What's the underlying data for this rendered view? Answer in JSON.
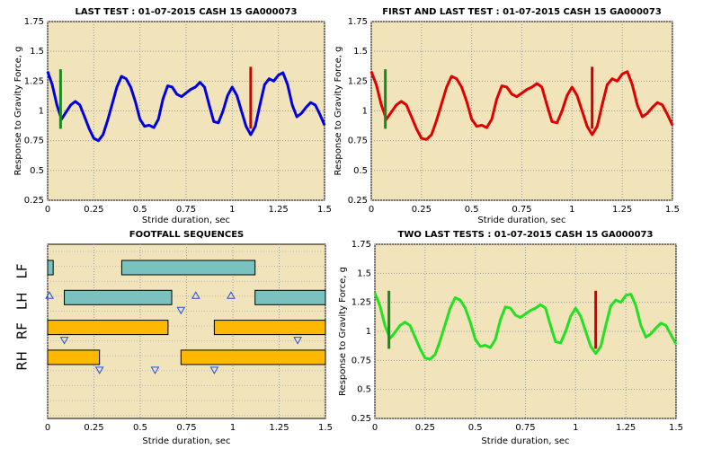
{
  "chart_data": [
    {
      "type": "line",
      "title": "LAST TEST : 01-07-2015 CASH 15 GA000073",
      "x_label": "Stride duration, sec",
      "y_label": "Response to Gravity Force, g",
      "x": [
        0,
        0.025,
        0.05,
        0.075,
        0.1,
        0.125,
        0.15,
        0.175,
        0.2,
        0.225,
        0.25,
        0.275,
        0.3,
        0.325,
        0.35,
        0.375,
        0.4,
        0.425,
        0.45,
        0.475,
        0.5,
        0.525,
        0.55,
        0.575,
        0.6,
        0.625,
        0.65,
        0.675,
        0.7,
        0.725,
        0.75,
        0.775,
        0.8,
        0.825,
        0.85,
        0.875,
        0.9,
        0.925,
        0.95,
        0.975,
        1,
        1.025,
        1.05,
        1.075,
        1.1,
        1.125,
        1.15,
        1.175,
        1.2,
        1.225,
        1.25,
        1.275,
        1.3,
        1.325,
        1.35,
        1.375,
        1.4,
        1.425,
        1.45,
        1.475,
        1.5
      ],
      "series": [
        {
          "color": "#0000e0",
          "values": [
            1.33,
            1.22,
            1.05,
            0.93,
            0.99,
            1.05,
            1.08,
            1.05,
            0.95,
            0.85,
            0.77,
            0.75,
            0.8,
            0.92,
            1.06,
            1.2,
            1.29,
            1.27,
            1.2,
            1.08,
            0.93,
            0.87,
            0.88,
            0.86,
            0.93,
            1.1,
            1.21,
            1.2,
            1.14,
            1.12,
            1.15,
            1.18,
            1.2,
            1.24,
            1.2,
            1.05,
            0.91,
            0.9,
            1,
            1.13,
            1.2,
            1.13,
            1,
            0.87,
            0.8,
            0.87,
            1.05,
            1.22,
            1.27,
            1.25,
            1.3,
            1.32,
            1.22,
            1.05,
            0.95,
            0.98,
            1.03,
            1.07,
            1.05,
            0.97,
            0.88
          ]
        }
      ],
      "markers": [
        {
          "x": 0.07,
          "y": [
            0.85,
            1.35
          ],
          "color": "#1a8a1a"
        },
        {
          "x": 1.1,
          "y": [
            0.85,
            1.37
          ],
          "color": "#d00000"
        }
      ],
      "xlim": [
        0,
        1.5
      ],
      "xticks": [
        0,
        0.25,
        0.5,
        0.75,
        1,
        1.25,
        1.5
      ],
      "ylim": [
        0.25,
        1.75
      ],
      "yticks": [
        0.25,
        0.5,
        0.75,
        1,
        1.25,
        1.5,
        1.75
      ],
      "grid": true
    },
    {
      "type": "line",
      "title": "FIRST AND LAST TEST : 01-07-2015 CASH 15 GA000073",
      "x_label": "Stride duration, sec",
      "y_label": "Response to Gravity Force, g",
      "x": [
        0,
        0.025,
        0.05,
        0.075,
        0.1,
        0.125,
        0.15,
        0.175,
        0.2,
        0.225,
        0.25,
        0.275,
        0.3,
        0.325,
        0.35,
        0.375,
        0.4,
        0.425,
        0.45,
        0.475,
        0.5,
        0.525,
        0.55,
        0.575,
        0.6,
        0.625,
        0.65,
        0.675,
        0.7,
        0.725,
        0.75,
        0.775,
        0.8,
        0.825,
        0.85,
        0.875,
        0.9,
        0.925,
        0.95,
        0.975,
        1,
        1.025,
        1.05,
        1.075,
        1.1,
        1.125,
        1.15,
        1.175,
        1.2,
        1.225,
        1.25,
        1.275,
        1.3,
        1.325,
        1.35,
        1.375,
        1.4,
        1.425,
        1.45,
        1.475,
        1.5
      ],
      "series": [
        {
          "color": "#e00000",
          "values": [
            1.33,
            1.22,
            1.05,
            0.93,
            0.99,
            1.05,
            1.08,
            1.05,
            0.95,
            0.85,
            0.77,
            0.76,
            0.8,
            0.92,
            1.06,
            1.2,
            1.29,
            1.27,
            1.2,
            1.08,
            0.93,
            0.87,
            0.88,
            0.86,
            0.93,
            1.1,
            1.21,
            1.2,
            1.14,
            1.12,
            1.15,
            1.18,
            1.2,
            1.23,
            1.2,
            1.05,
            0.91,
            0.9,
            1,
            1.13,
            1.2,
            1.13,
            1,
            0.87,
            0.8,
            0.87,
            1.05,
            1.22,
            1.27,
            1.25,
            1.31,
            1.33,
            1.22,
            1.05,
            0.95,
            0.98,
            1.03,
            1.07,
            1.05,
            0.97,
            0.88
          ]
        }
      ],
      "markers": [
        {
          "x": 0.07,
          "y": [
            0.85,
            1.35
          ],
          "color": "#1a8a1a"
        },
        {
          "x": 1.1,
          "y": [
            0.85,
            1.37
          ],
          "color": "#d00000"
        }
      ],
      "xlim": [
        0,
        1.5
      ],
      "xticks": [
        0,
        0.25,
        0.5,
        0.75,
        1,
        1.25,
        1.5
      ],
      "ylim": [
        0.25,
        1.75
      ],
      "yticks": [
        0.25,
        0.5,
        0.75,
        1,
        1.25,
        1.5,
        1.75
      ],
      "grid": true
    },
    {
      "type": "gantt",
      "title": "FOOTFALL SEQUENCES",
      "x_label": "Stride duration, sec",
      "rows": [
        "LF",
        "LH",
        "RF",
        "RH"
      ],
      "tasks": [
        {
          "row": 0,
          "start": 0,
          "end": 0.03,
          "color": "#79c2c0"
        },
        {
          "row": 0,
          "start": 0.4,
          "end": 1.12,
          "color": "#79c2c0"
        },
        {
          "row": 1,
          "start": 0.09,
          "end": 0.67,
          "color": "#79c2c0"
        },
        {
          "row": 1,
          "start": 1.12,
          "end": 1.5,
          "color": "#79c2c0"
        },
        {
          "row": 2,
          "start": 0,
          "end": 0.65,
          "color": "#ffb800"
        },
        {
          "row": 2,
          "start": 0.9,
          "end": 1.5,
          "color": "#ffb800"
        },
        {
          "row": 3,
          "start": 0,
          "end": 0.28,
          "color": "#ffb800"
        },
        {
          "row": 3,
          "start": 0.72,
          "end": 1.5,
          "color": "#ffb800"
        }
      ],
      "events": [
        {
          "row": 1,
          "x": 0.01,
          "dir": "up"
        },
        {
          "row": 1,
          "x": 0.8,
          "dir": "up"
        },
        {
          "row": 1,
          "x": 0.99,
          "dir": "up"
        },
        {
          "row": 2,
          "x": 0.09,
          "dir": "down"
        },
        {
          "row": 1,
          "x": 0.72,
          "dir": "down"
        },
        {
          "row": 3,
          "x": 0.58,
          "dir": "down"
        },
        {
          "row": 3,
          "x": 0.9,
          "dir": "down"
        },
        {
          "row": 2,
          "x": 1.35,
          "dir": "down"
        },
        {
          "row": 3,
          "x": 0.28,
          "dir": "down"
        }
      ],
      "xlim": [
        0,
        1.5
      ],
      "xticks": [
        0,
        0.25,
        0.5,
        0.75,
        1,
        1.25,
        1.5
      ],
      "grid": true
    },
    {
      "type": "line",
      "title": "TWO LAST TESTS : 01-07-2015 CASH 15 GA000073",
      "x_label": "Stride duration, sec",
      "y_label": "Response to Gravity Force, g",
      "x": [
        0,
        0.025,
        0.05,
        0.075,
        0.1,
        0.125,
        0.15,
        0.175,
        0.2,
        0.225,
        0.25,
        0.275,
        0.3,
        0.325,
        0.35,
        0.375,
        0.4,
        0.425,
        0.45,
        0.475,
        0.5,
        0.525,
        0.55,
        0.575,
        0.6,
        0.625,
        0.65,
        0.675,
        0.7,
        0.725,
        0.75,
        0.775,
        0.8,
        0.825,
        0.85,
        0.875,
        0.9,
        0.925,
        0.95,
        0.975,
        1,
        1.025,
        1.05,
        1.075,
        1.1,
        1.125,
        1.15,
        1.175,
        1.2,
        1.225,
        1.25,
        1.275,
        1.3,
        1.325,
        1.35,
        1.375,
        1.4,
        1.425,
        1.45,
        1.475,
        1.5
      ],
      "series": [
        {
          "color": "#22e022",
          "values": [
            1.33,
            1.22,
            1.05,
            0.94,
            0.99,
            1.05,
            1.08,
            1.05,
            0.95,
            0.85,
            0.77,
            0.76,
            0.8,
            0.92,
            1.06,
            1.2,
            1.29,
            1.27,
            1.2,
            1.08,
            0.93,
            0.87,
            0.88,
            0.86,
            0.93,
            1.1,
            1.21,
            1.2,
            1.14,
            1.12,
            1.15,
            1.18,
            1.2,
            1.23,
            1.2,
            1.05,
            0.91,
            0.9,
            1,
            1.13,
            1.2,
            1.13,
            1,
            0.87,
            0.81,
            0.87,
            1.05,
            1.22,
            1.27,
            1.25,
            1.31,
            1.32,
            1.22,
            1.05,
            0.95,
            0.98,
            1.03,
            1.07,
            1.05,
            0.97,
            0.89
          ]
        }
      ],
      "markers": [
        {
          "x": 0.07,
          "y": [
            0.85,
            1.35
          ],
          "color": "#1a8a1a"
        },
        {
          "x": 1.1,
          "y": [
            0.85,
            1.35
          ],
          "color": "#d00000"
        }
      ],
      "xlim": [
        0,
        1.5
      ],
      "xticks": [
        0,
        0.25,
        0.5,
        0.75,
        1,
        1.25,
        1.5
      ],
      "ylim": [
        0.25,
        1.75
      ],
      "yticks": [
        0.25,
        0.5,
        0.75,
        1,
        1.25,
        1.5,
        1.75
      ],
      "grid": true
    }
  ]
}
